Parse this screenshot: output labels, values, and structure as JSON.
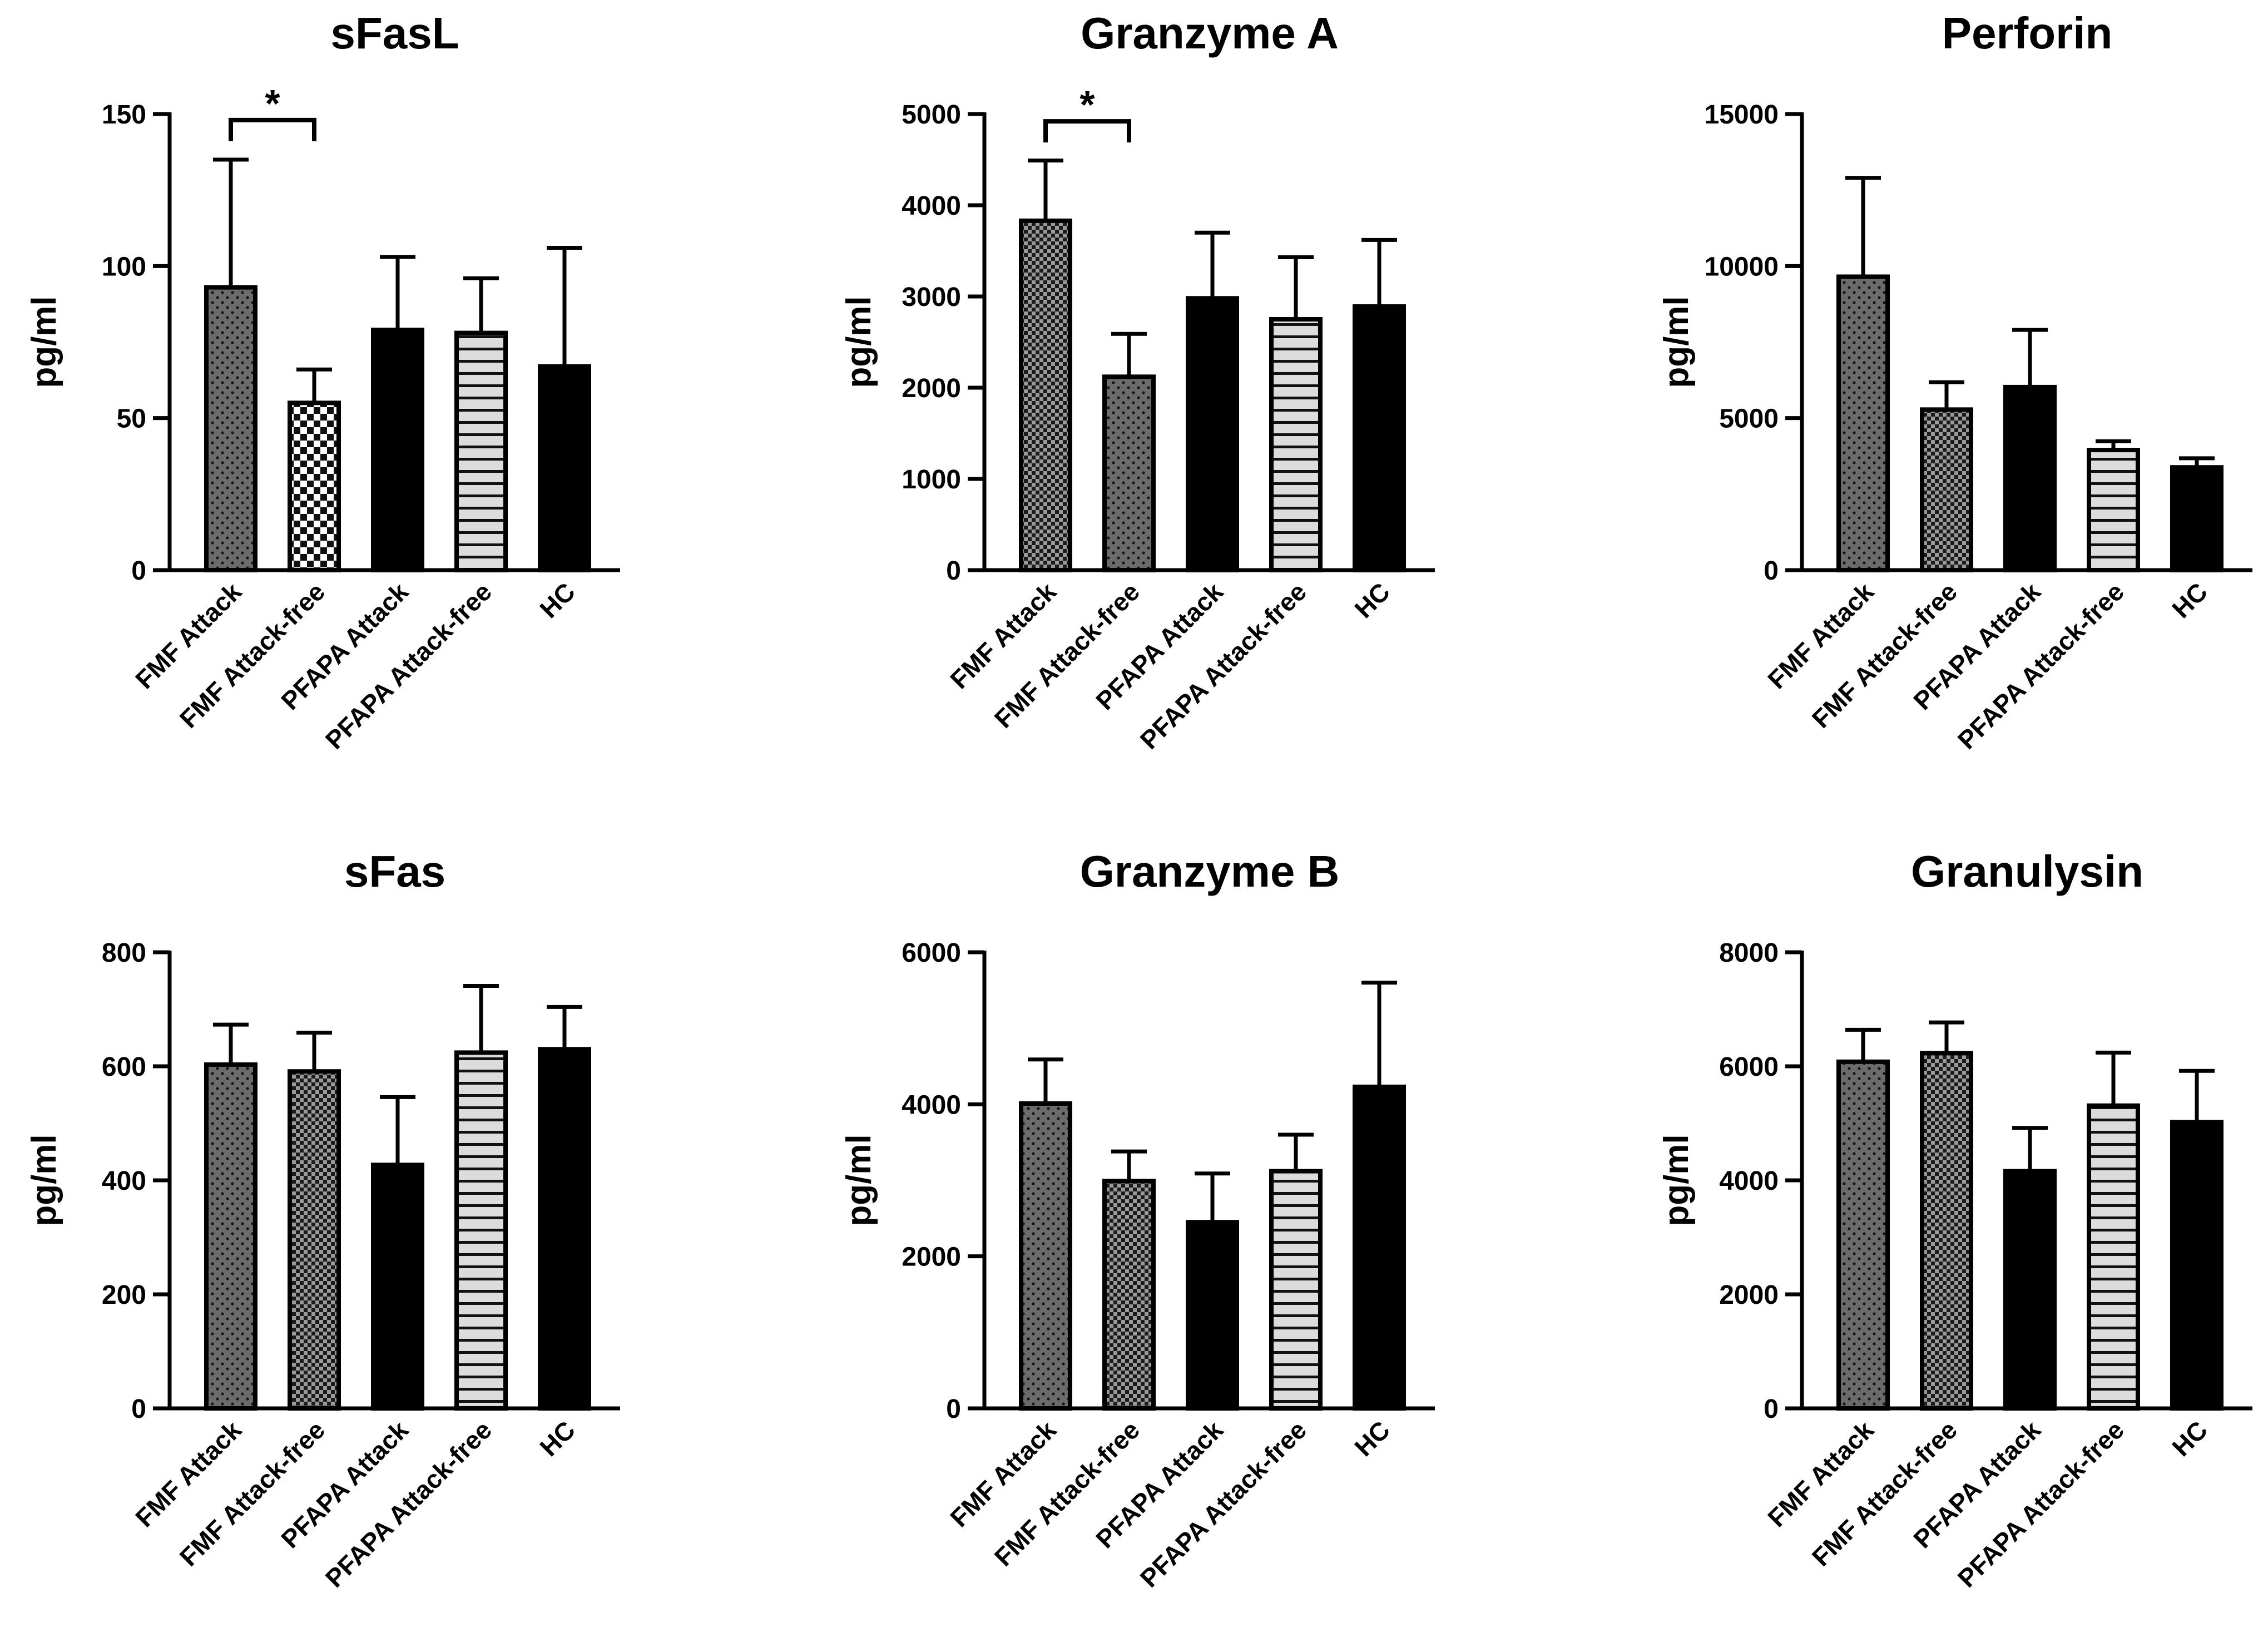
{
  "chart_data": [
    {
      "type": "bar",
      "title": "sFasL",
      "ylabel": "pg/ml",
      "ylim": [
        0,
        150
      ],
      "yticks": [
        0,
        50,
        100,
        150
      ],
      "categories": [
        "FMF Attack",
        "FMF Attack-free",
        "PFAPA Attack",
        "PFAPA Attack-free",
        "HC"
      ],
      "values": [
        93,
        55,
        79,
        78,
        67
      ],
      "error_upper": [
        135,
        66,
        103,
        96,
        106
      ],
      "patterns": [
        "dots",
        "checker-large",
        "solid",
        "horizontal-lines",
        "solid"
      ],
      "significance": [
        {
          "from": 0,
          "to": 1,
          "label": "*",
          "level": 148
        }
      ]
    },
    {
      "type": "bar",
      "title": "Granzyme A",
      "ylabel": "pg/ml",
      "ylim": [
        0,
        5000
      ],
      "yticks": [
        0,
        1000,
        2000,
        3000,
        4000,
        5000
      ],
      "categories": [
        "FMF Attack",
        "FMF Attack-free",
        "PFAPA Attack",
        "PFAPA Attack-free",
        "HC"
      ],
      "values": [
        3830,
        2120,
        2980,
        2750,
        2890
      ],
      "error_upper": [
        4490,
        2590,
        3700,
        3430,
        3620
      ],
      "patterns": [
        "checker-small",
        "dots",
        "solid",
        "horizontal-lines",
        "solid"
      ],
      "significance": [
        {
          "from": 0,
          "to": 1,
          "label": "*",
          "level": 4920
        }
      ]
    },
    {
      "type": "bar",
      "title": "Perforin",
      "ylabel": "pg/ml",
      "ylim": [
        0,
        15000
      ],
      "yticks": [
        0,
        5000,
        10000,
        15000
      ],
      "categories": [
        "FMF Attack",
        "FMF Attack-free",
        "PFAPA Attack",
        "PFAPA Attack-free",
        "HC"
      ],
      "values": [
        9650,
        5280,
        6020,
        3950,
        3380
      ],
      "error_upper": [
        12900,
        6180,
        7900,
        4240,
        3680
      ],
      "patterns": [
        "dots",
        "checker-small",
        "solid",
        "horizontal-lines",
        "solid"
      ],
      "significance": []
    },
    {
      "type": "bar",
      "title": "sFas",
      "ylabel": "pg/ml",
      "ylim": [
        0,
        800
      ],
      "yticks": [
        0,
        200,
        400,
        600,
        800
      ],
      "categories": [
        "FMF Attack",
        "FMF Attack-free",
        "PFAPA Attack",
        "PFAPA Attack-free",
        "HC"
      ],
      "values": [
        603,
        591,
        427,
        624,
        630
      ],
      "error_upper": [
        673,
        659,
        546,
        741,
        704
      ],
      "patterns": [
        "dots",
        "checker-small",
        "solid",
        "horizontal-lines",
        "solid"
      ],
      "significance": []
    },
    {
      "type": "bar",
      "title": "Granzyme B",
      "ylabel": "pg/ml",
      "ylim": [
        0,
        6000
      ],
      "yticks": [
        0,
        2000,
        4000,
        6000
      ],
      "categories": [
        "FMF Attack",
        "FMF Attack-free",
        "PFAPA Attack",
        "PFAPA Attack-free",
        "HC"
      ],
      "values": [
        4010,
        2990,
        2450,
        3120,
        4230
      ],
      "error_upper": [
        4590,
        3380,
        3090,
        3600,
        5600
      ],
      "patterns": [
        "dots",
        "checker-small",
        "solid",
        "horizontal-lines",
        "solid"
      ],
      "significance": []
    },
    {
      "type": "bar",
      "title": "Granulysin",
      "ylabel": "pg/ml",
      "ylim": [
        0,
        8000
      ],
      "yticks": [
        0,
        2000,
        4000,
        6000,
        8000
      ],
      "categories": [
        "FMF Attack",
        "FMF Attack-free",
        "PFAPA Attack",
        "PFAPA Attack-free",
        "HC"
      ],
      "values": [
        6080,
        6230,
        4160,
        5310,
        5020
      ],
      "error_upper": [
        6640,
        6770,
        4920,
        6240,
        5920
      ],
      "patterns": [
        "dots",
        "checker-small",
        "solid",
        "horizontal-lines",
        "solid"
      ],
      "significance": []
    }
  ]
}
